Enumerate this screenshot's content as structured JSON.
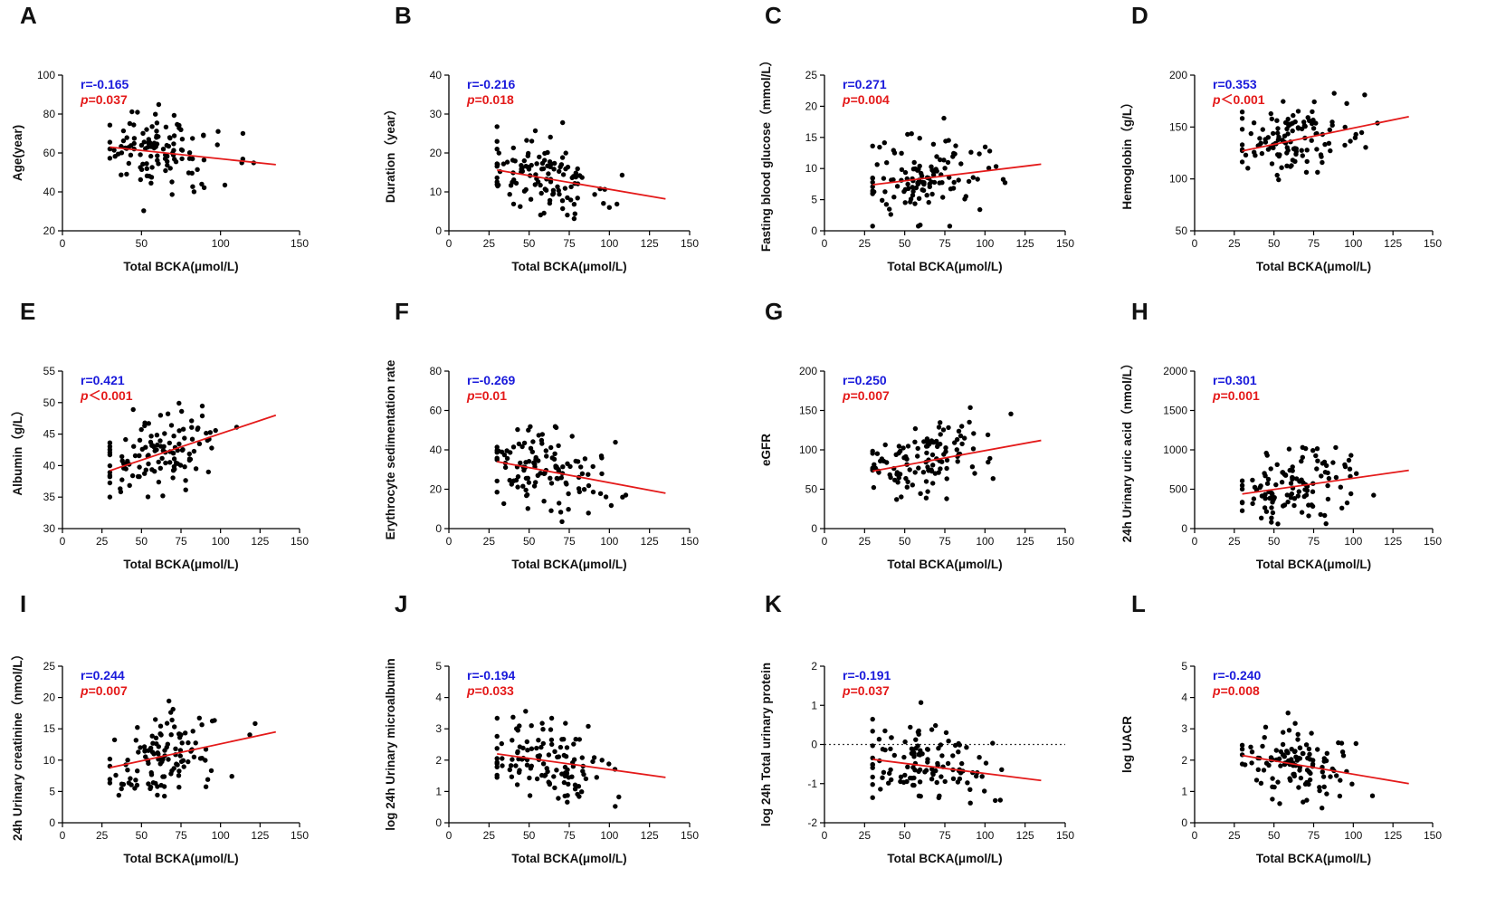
{
  "figure": {
    "colors": {
      "r_text": "#1a1adb",
      "p_text": "#e41a1a",
      "fit_line": "#e41a1a",
      "points": "#000000",
      "axis": "#000000"
    }
  },
  "chart_data": [
    {
      "type": "scatter",
      "panel": "A",
      "xlabel": "Total BCKA(μmol/L)",
      "ylabel": "Age(year)",
      "xlim": [
        0,
        150
      ],
      "xticks": [
        0,
        50,
        100,
        150
      ],
      "ylim": [
        20,
        100
      ],
      "yticks": [
        20,
        40,
        60,
        80,
        100
      ],
      "r_text": "r=-0.165",
      "p_prefix": "p",
      "p_rest": "=0.037",
      "fit": [
        [
          30,
          63
        ],
        [
          135,
          54
        ]
      ],
      "refline": null
    },
    {
      "type": "scatter",
      "panel": "B",
      "xlabel": "Total BCKA(μmol/L)",
      "ylabel": "Duration（year）",
      "xlim": [
        0,
        150
      ],
      "xticks": [
        0,
        25,
        50,
        75,
        100,
        125,
        150
      ],
      "ylim": [
        0,
        40
      ],
      "yticks": [
        0,
        10,
        20,
        30,
        40
      ],
      "r_text": "r=-0.216",
      "p_prefix": "p",
      "p_rest": "=0.018",
      "fit": [
        [
          30,
          15.6
        ],
        [
          135,
          8.2
        ]
      ],
      "refline": null
    },
    {
      "type": "scatter",
      "panel": "C",
      "xlabel": "Total BCKA(μmol/L)",
      "ylabel": "Fasting blood glucose（mmol/L）",
      "xlim": [
        0,
        150
      ],
      "xticks": [
        0,
        25,
        50,
        75,
        100,
        125,
        150
      ],
      "ylim": [
        0,
        25
      ],
      "yticks": [
        0,
        5,
        10,
        15,
        20,
        25
      ],
      "r_text": "r=0.271",
      "p_prefix": "p",
      "p_rest": "=0.004",
      "fit": [
        [
          30,
          7.4
        ],
        [
          135,
          10.7
        ]
      ],
      "refline": null
    },
    {
      "type": "scatter",
      "panel": "D",
      "xlabel": "Total BCKA(μmol/L)",
      "ylabel": "Hemoglobin（g/L）",
      "xlim": [
        0,
        150
      ],
      "xticks": [
        0,
        25,
        50,
        75,
        100,
        125,
        150
      ],
      "ylim": [
        50,
        200
      ],
      "yticks": [
        50,
        100,
        150,
        200
      ],
      "r_text": "r=0.353",
      "p_prefix": "p",
      "p_rest": "＜0.001",
      "fit": [
        [
          30,
          127
        ],
        [
          135,
          160
        ]
      ],
      "refline": null
    },
    {
      "type": "scatter",
      "panel": "E",
      "xlabel": "Total BCKA(μmol/L)",
      "ylabel": "Albumin（g/L）",
      "xlim": [
        0,
        150
      ],
      "xticks": [
        0,
        25,
        50,
        75,
        100,
        125,
        150
      ],
      "ylim": [
        30,
        55
      ],
      "yticks": [
        30,
        35,
        40,
        45,
        50,
        55
      ],
      "r_text": "r=0.421",
      "p_prefix": "p",
      "p_rest": "＜0.001",
      "fit": [
        [
          30,
          39.2
        ],
        [
          135,
          48
        ]
      ],
      "refline": null
    },
    {
      "type": "scatter",
      "panel": "F",
      "xlabel": "Total BCKA(μmol/L)",
      "ylabel": "Erythrocyte sedimentation rate",
      "xlim": [
        0,
        150
      ],
      "xticks": [
        0,
        25,
        50,
        75,
        100,
        125,
        150
      ],
      "ylim": [
        0,
        80
      ],
      "yticks": [
        0,
        20,
        40,
        60,
        80
      ],
      "r_text": "r=-0.269",
      "p_prefix": "p",
      "p_rest": "=0.01",
      "fit": [
        [
          30,
          34
        ],
        [
          135,
          18
        ]
      ],
      "refline": null
    },
    {
      "type": "scatter",
      "panel": "G",
      "xlabel": "Total BCKA(μmol/L)",
      "ylabel": "eGFR",
      "xlim": [
        0,
        150
      ],
      "xticks": [
        0,
        25,
        50,
        75,
        100,
        125,
        150
      ],
      "ylim": [
        0,
        200
      ],
      "yticks": [
        0,
        50,
        100,
        150,
        200
      ],
      "r_text": "r=0.250",
      "p_prefix": "p",
      "p_rest": "=0.007",
      "fit": [
        [
          30,
          73
        ],
        [
          135,
          112
        ]
      ],
      "refline": null
    },
    {
      "type": "scatter",
      "panel": "H",
      "xlabel": "Total BCKA(μmol/L)",
      "ylabel": "24h Urinary uric acid（nmol/L）",
      "xlim": [
        0,
        150
      ],
      "xticks": [
        0,
        25,
        50,
        75,
        100,
        125,
        150
      ],
      "ylim": [
        0,
        2000
      ],
      "yticks": [
        0,
        500,
        1000,
        1500,
        2000
      ],
      "r_text": "r=0.301",
      "p_prefix": "p",
      "p_rest": "=0.001",
      "fit": [
        [
          30,
          440
        ],
        [
          135,
          740
        ]
      ],
      "refline": null
    },
    {
      "type": "scatter",
      "panel": "I",
      "xlabel": "Total BCKA(μmol/L)",
      "ylabel": "24h Urinary creatinine（nmol/L）",
      "xlim": [
        0,
        150
      ],
      "xticks": [
        0,
        25,
        50,
        75,
        100,
        125,
        150
      ],
      "ylim": [
        0,
        25
      ],
      "yticks": [
        0,
        5,
        10,
        15,
        20,
        25
      ],
      "r_text": "r=0.244",
      "p_prefix": "p",
      "p_rest": "=0.007",
      "fit": [
        [
          30,
          8.8
        ],
        [
          135,
          14.5
        ]
      ],
      "refline": null
    },
    {
      "type": "scatter",
      "panel": "J",
      "xlabel": "Total BCKA(μmol/L)",
      "ylabel": "log 24h Urinary microalbumin",
      "xlim": [
        0,
        150
      ],
      "xticks": [
        0,
        25,
        50,
        75,
        100,
        125,
        150
      ],
      "ylim": [
        0,
        5
      ],
      "yticks": [
        0,
        1,
        2,
        3,
        4,
        5
      ],
      "r_text": "r=-0.194",
      "p_prefix": "p",
      "p_rest": "=0.033",
      "fit": [
        [
          30,
          2.2
        ],
        [
          135,
          1.45
        ]
      ],
      "refline": null
    },
    {
      "type": "scatter",
      "panel": "K",
      "xlabel": "Total BCKA(μmol/L)",
      "ylabel": "log 24h Total urinary protein",
      "xlim": [
        0,
        150
      ],
      "xticks": [
        0,
        25,
        50,
        75,
        100,
        125,
        150
      ],
      "ylim": [
        -2,
        2
      ],
      "yticks": [
        -2,
        -1,
        0,
        1,
        2
      ],
      "r_text": "r=-0.191",
      "p_prefix": "p",
      "p_rest": "=0.037",
      "fit": [
        [
          30,
          -0.38
        ],
        [
          135,
          -0.92
        ]
      ],
      "refline": 0
    },
    {
      "type": "scatter",
      "panel": "L",
      "xlabel": "Total BCKA(μmol/L)",
      "ylabel": "log UACR",
      "xlim": [
        0,
        150
      ],
      "xticks": [
        0,
        25,
        50,
        75,
        100,
        125,
        150
      ],
      "ylim": [
        0,
        5
      ],
      "yticks": [
        0,
        1,
        2,
        3,
        4,
        5
      ],
      "r_text": "r=-0.240",
      "p_prefix": "p",
      "p_rest": "=0.008",
      "fit": [
        [
          30,
          2.15
        ],
        [
          135,
          1.25
        ]
      ],
      "refline": null
    }
  ]
}
